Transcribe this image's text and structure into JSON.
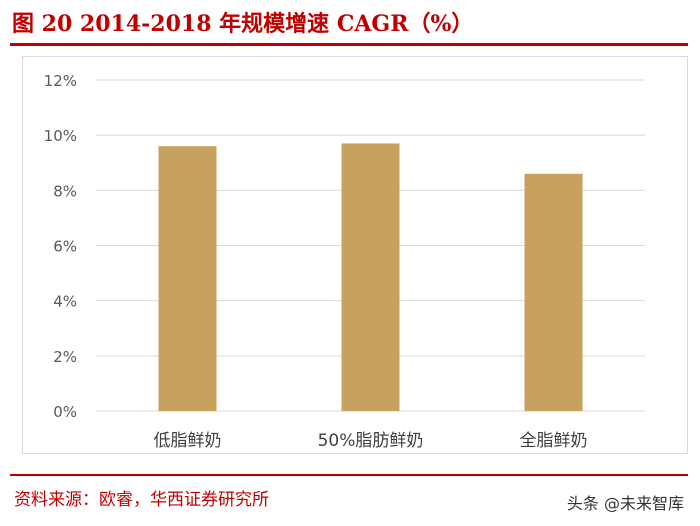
{
  "figure": {
    "title": "图 20   2014-2018 年规模增速 CAGR（%）",
    "source": "资料来源：欧睿，华西证券研究所",
    "watermark": "头条 @未来智库"
  },
  "colors": {
    "accent": "#c00000",
    "bar": "#c9a15f",
    "grid": "#d9d9d9",
    "axis_text": "#595959"
  },
  "chart_data": {
    "type": "bar",
    "categories": [
      "低脂鲜奶",
      "50%脂肪鲜奶",
      "全脂鲜奶"
    ],
    "values": [
      9.6,
      9.7,
      8.6
    ],
    "ylim": [
      0,
      12
    ],
    "yticks": [
      0,
      2,
      4,
      6,
      8,
      10,
      12
    ],
    "ytick_labels": [
      "0%",
      "2%",
      "4%",
      "6%",
      "8%",
      "10%",
      "12%"
    ],
    "grid": true,
    "title": "",
    "xlabel": "",
    "ylabel": ""
  }
}
